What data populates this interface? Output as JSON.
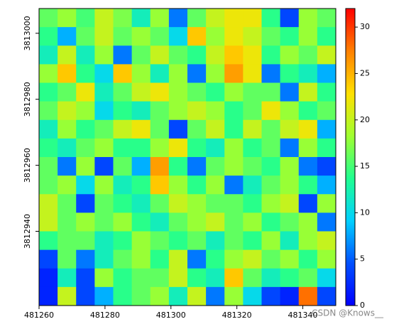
{
  "chart_data": {
    "type": "raster",
    "xlim": [
      481260,
      481350
    ],
    "ylim": [
      3812917.5,
      3813007.5
    ],
    "xticks": [
      481260,
      481280,
      481300,
      481320,
      481340
    ],
    "yticks": [
      3812940,
      3812960,
      3812980,
      3813000
    ],
    "zlim": [
      0,
      32
    ],
    "zticks": [
      0,
      5,
      10,
      15,
      20,
      25,
      30
    ],
    "colors": [
      "#0000ff",
      "#0050ff",
      "#00d0ff",
      "#20ff90",
      "#a0ff30",
      "#ffe000",
      "#ff8000",
      "#ff0000"
    ],
    "watermark": "CSDN @Knows__",
    "grid_values": [
      [
        16,
        18,
        15,
        20,
        17,
        12,
        18,
        6,
        16,
        20,
        22,
        22,
        14,
        4,
        18,
        16
      ],
      [
        14,
        8,
        16,
        20,
        16,
        18,
        16,
        10,
        24,
        18,
        22,
        20,
        16,
        14,
        18,
        14
      ],
      [
        12,
        20,
        12,
        18,
        6,
        16,
        20,
        16,
        14,
        20,
        24,
        22,
        14,
        18,
        16,
        20
      ],
      [
        18,
        24,
        14,
        10,
        24,
        18,
        12,
        18,
        6,
        18,
        26,
        22,
        6,
        14,
        12,
        8
      ],
      [
        14,
        16,
        22,
        12,
        16,
        20,
        22,
        18,
        16,
        14,
        18,
        16,
        16,
        6,
        20,
        14
      ],
      [
        16,
        20,
        18,
        10,
        14,
        12,
        16,
        18,
        20,
        18,
        14,
        16,
        22,
        18,
        14,
        16
      ],
      [
        12,
        18,
        14,
        16,
        20,
        22,
        16,
        4,
        16,
        20,
        14,
        20,
        16,
        20,
        22,
        8
      ],
      [
        14,
        12,
        16,
        18,
        14,
        14,
        18,
        22,
        14,
        12,
        18,
        14,
        16,
        6,
        18,
        14
      ],
      [
        16,
        6,
        18,
        4,
        16,
        8,
        26,
        14,
        6,
        16,
        18,
        16,
        14,
        18,
        6,
        4
      ],
      [
        16,
        18,
        10,
        18,
        12,
        14,
        24,
        18,
        14,
        18,
        6,
        12,
        16,
        18,
        14,
        8
      ],
      [
        20,
        16,
        4,
        16,
        14,
        12,
        16,
        20,
        18,
        16,
        16,
        14,
        18,
        20,
        4,
        18
      ],
      [
        20,
        16,
        18,
        16,
        18,
        14,
        12,
        16,
        18,
        20,
        16,
        18,
        14,
        16,
        18,
        6
      ],
      [
        14,
        16,
        16,
        12,
        14,
        18,
        16,
        14,
        16,
        12,
        16,
        14,
        18,
        12,
        18,
        20
      ],
      [
        4,
        16,
        6,
        12,
        16,
        18,
        14,
        20,
        6,
        14,
        18,
        20,
        16,
        18,
        14,
        18
      ],
      [
        2,
        12,
        4,
        18,
        14,
        16,
        16,
        20,
        14,
        12,
        24,
        16,
        12,
        14,
        16,
        10
      ],
      [
        2,
        20,
        4,
        8,
        14,
        16,
        18,
        12,
        20,
        6,
        18,
        10,
        4,
        2,
        28,
        4
      ]
    ]
  }
}
